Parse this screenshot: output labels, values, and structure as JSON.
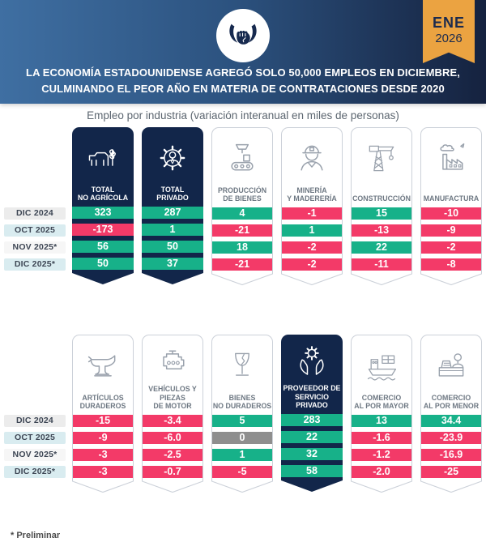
{
  "header": {
    "logo_icon": "bull-horns-icon",
    "badge": {
      "month": "ENE",
      "year": "2026"
    },
    "title_line1": "LA ECONOMÍA ESTADOUNIDENSE AGREGÓ SOLO 50,000 EMPLEOS EN DICIEMBRE,",
    "title_line2": "CULMINANDO EL PEOR AÑO EN MATERIA DE CONTRATACIONES DESDE 2020"
  },
  "subtitle": "Empleo por industria (variación interanual en miles de personas)",
  "footnote": "* Preliminar",
  "colors": {
    "positive": "#17b189",
    "negative": "#f33a68",
    "zero": "#8e8e8e",
    "navy": "#12264a",
    "gold": "#eba341"
  },
  "chart_data": {
    "type": "table",
    "title": "Empleo por industria (variación interanual en miles de personas)",
    "categories": [
      "DIC 2024",
      "OCT 2025",
      "NOV 2025*",
      "DIC 2025*"
    ],
    "value_color_rule": "positive=green, negative=red, zero=gray",
    "tables": [
      {
        "columns": [
          {
            "label_lines": [
              "TOTAL",
              "NO AGRÍCOLA"
            ],
            "icon": "cow-wheat-icon",
            "highlight": true,
            "values": [
              "323",
              "-173",
              "56",
              "50"
            ]
          },
          {
            "label_lines": [
              "TOTAL",
              "PRIVADO"
            ],
            "icon": "gear-person-icon",
            "highlight": true,
            "values": [
              "287",
              "1",
              "50",
              "37"
            ]
          },
          {
            "label_lines": [
              "PRODUCCIÓN",
              "DE BIENES"
            ],
            "icon": "conveyor-icon",
            "highlight": false,
            "values": [
              "4",
              "-21",
              "18",
              "-21"
            ]
          },
          {
            "label_lines": [
              "MINERÍA",
              "Y MADERERÍA"
            ],
            "icon": "miner-icon",
            "highlight": false,
            "values": [
              "-1",
              "1",
              "-2",
              "-2"
            ]
          },
          {
            "label_lines": [
              "CONSTRUCCIÓN"
            ],
            "icon": "crane-icon",
            "highlight": false,
            "values": [
              "15",
              "-13",
              "22",
              "-11"
            ]
          },
          {
            "label_lines": [
              "MANUFACTURA"
            ],
            "icon": "factory-icon",
            "highlight": false,
            "values": [
              "-10",
              "-9",
              "-2",
              "-8"
            ]
          }
        ]
      },
      {
        "columns": [
          {
            "label_lines": [
              "ARTÍCULOS",
              "DURADEROS"
            ],
            "icon": "anvil-icon",
            "highlight": false,
            "values": [
              "-15",
              "-9",
              "-3",
              "-3"
            ]
          },
          {
            "label_lines": [
              "VEHÍCULOS Y PIEZAS",
              "DE MOTOR"
            ],
            "icon": "engine-icon",
            "highlight": false,
            "values": [
              "-3.4",
              "-6.0",
              "-2.5",
              "-0.7"
            ]
          },
          {
            "label_lines": [
              "BIENES",
              "NO DURADEROS"
            ],
            "icon": "broken-glass-icon",
            "highlight": false,
            "values": [
              "5",
              "0",
              "1",
              "-5"
            ]
          },
          {
            "label_lines": [
              "PROVEEDOR DE",
              "SERVICIO PRIVADO"
            ],
            "icon": "hands-gear-icon",
            "highlight": true,
            "values": [
              "283",
              "22",
              "32",
              "58"
            ]
          },
          {
            "label_lines": [
              "COMERCIO",
              "AL POR MAYOR"
            ],
            "icon": "ship-icon",
            "highlight": false,
            "values": [
              "13",
              "-1.6",
              "-1.2",
              "-2.0"
            ]
          },
          {
            "label_lines": [
              "COMERCIO",
              "AL POR MENOR"
            ],
            "icon": "cashier-icon",
            "highlight": false,
            "values": [
              "34.4",
              "-23.9",
              "-16.9",
              "-25"
            ]
          }
        ]
      }
    ]
  }
}
